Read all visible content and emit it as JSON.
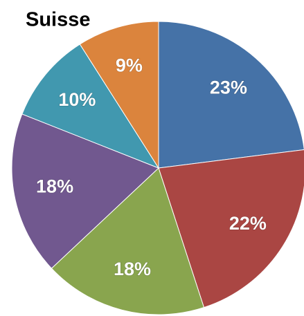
{
  "chart_data": {
    "type": "pie",
    "title": "Suisse",
    "values": [
      23,
      22,
      18,
      18,
      10,
      9
    ],
    "value_labels": [
      "23%",
      "22%",
      "18%",
      "18%",
      "10%",
      "9%"
    ],
    "colors": [
      "#4572a7",
      "#aa4643",
      "#89a54e",
      "#71588f",
      "#4198af",
      "#db843d"
    ]
  }
}
